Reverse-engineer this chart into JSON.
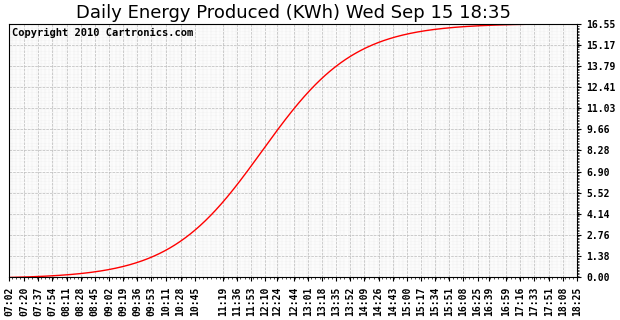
{
  "title": "Daily Energy Produced (KWh) Wed Sep 15 18:35",
  "copyright_text": "Copyright 2010 Cartronics.com",
  "line_color": "#ff0000",
  "background_color": "#ffffff",
  "plot_bg_color": "#ffffff",
  "grid_color": "#bbbbbb",
  "ytick_labels": [
    "0.00",
    "1.38",
    "2.76",
    "4.14",
    "5.52",
    "6.90",
    "8.28",
    "9.66",
    "11.03",
    "12.41",
    "13.79",
    "15.17",
    "16.55"
  ],
  "ytick_values": [
    0.0,
    1.38,
    2.76,
    4.14,
    5.52,
    6.9,
    8.28,
    9.66,
    11.03,
    12.41,
    13.79,
    15.17,
    16.55
  ],
  "ylim": [
    0.0,
    16.55
  ],
  "xtick_labels": [
    "07:02",
    "07:20",
    "07:37",
    "07:54",
    "08:11",
    "08:28",
    "08:45",
    "09:02",
    "09:19",
    "09:36",
    "09:53",
    "10:11",
    "10:28",
    "10:45",
    "11:19",
    "11:36",
    "11:53",
    "12:10",
    "12:24",
    "12:44",
    "13:01",
    "13:18",
    "13:35",
    "13:52",
    "14:09",
    "14:26",
    "14:43",
    "15:00",
    "15:17",
    "15:34",
    "15:51",
    "16:08",
    "16:25",
    "16:39",
    "16:59",
    "17:16",
    "17:33",
    "17:51",
    "18:08",
    "18:25"
  ],
  "title_fontsize": 13,
  "tick_fontsize": 7,
  "copyright_fontsize": 7.5,
  "inflection_minutes": 726,
  "steepness": 0.018,
  "y_max": 16.55
}
